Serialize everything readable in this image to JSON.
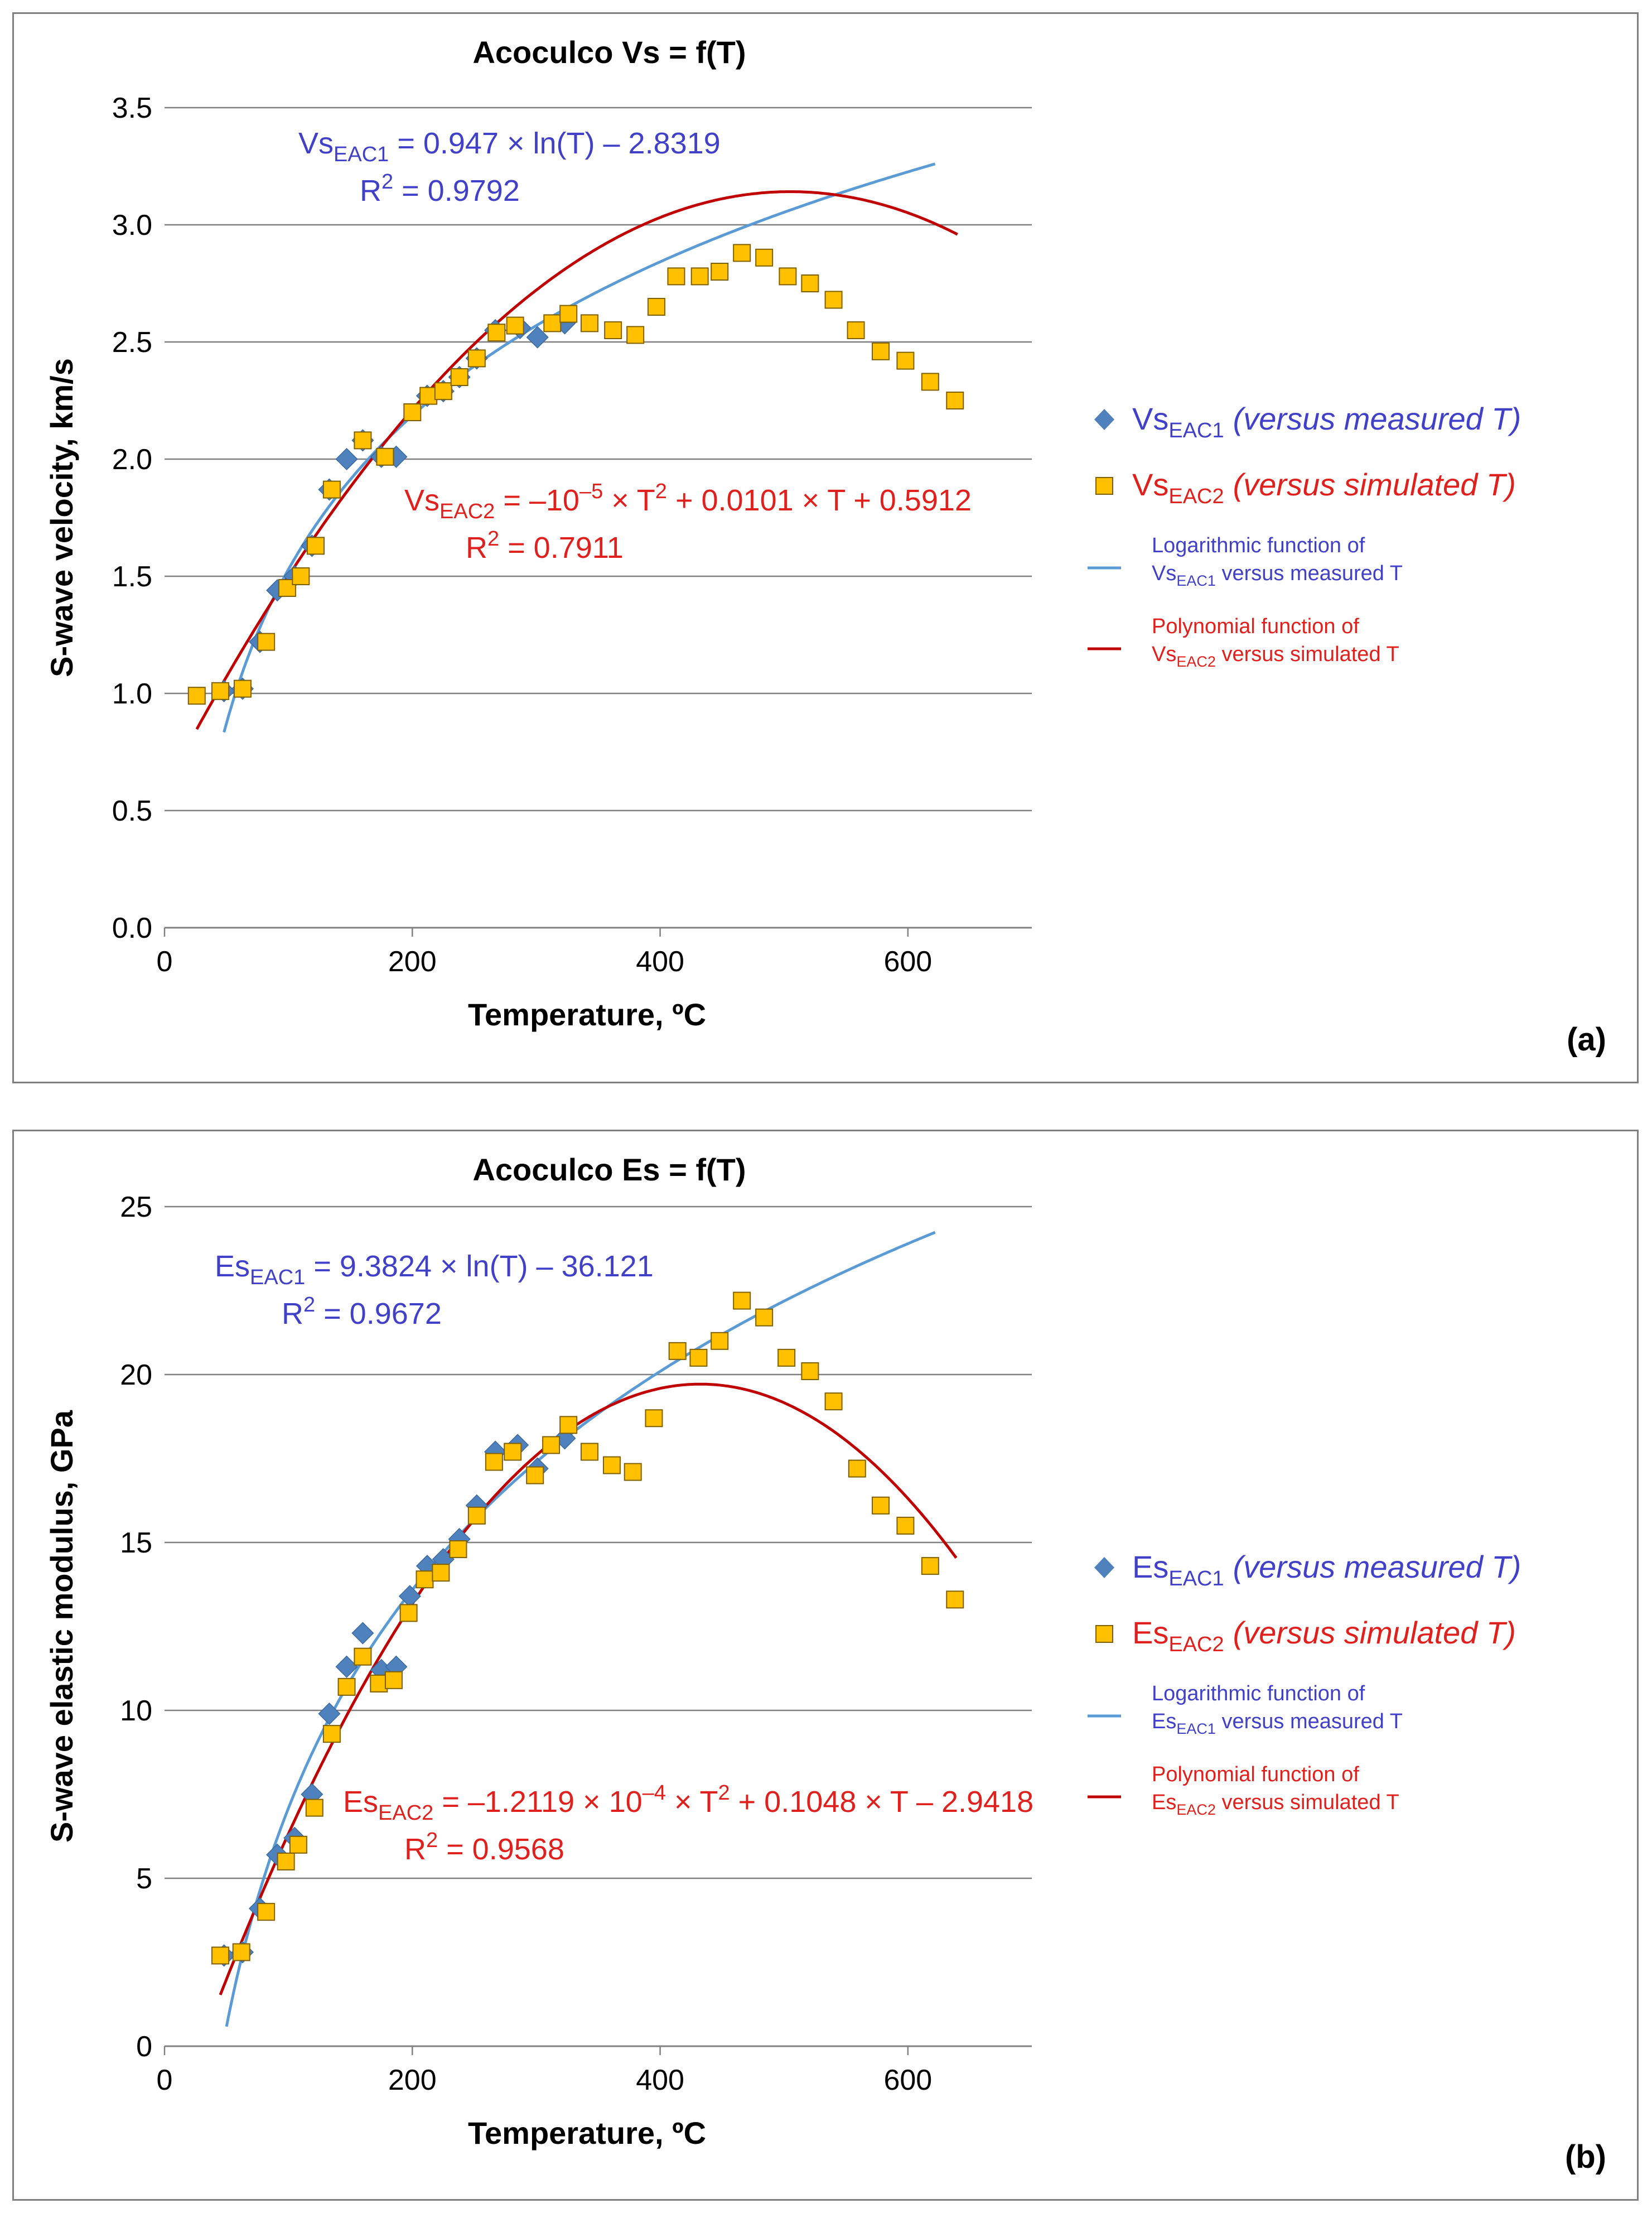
{
  "colors": {
    "blue_series": "#4f81bd",
    "blue_text": "#4040c8",
    "blue_line": "#5b9bd5",
    "orange_fill": "#ffc000",
    "orange_stroke": "#7f6000",
    "red": "#e0201c",
    "red_line": "#c00000",
    "grid": "#808080",
    "frame": "#7f7f7f"
  },
  "chart_data": [
    {
      "type": "scatter",
      "panel_label": "(a)",
      "title": "Acoculco Vs = f(T)",
      "xlabel": "Temperature, ºC",
      "ylabel": "S-wave velocity, km/s",
      "xlim": [
        0,
        700
      ],
      "ylim": [
        0,
        3.5
      ],
      "xticks": [
        "0",
        "200",
        "400",
        "600"
      ],
      "yticks": [
        "0.0",
        "0.5",
        "1.0",
        "1.5",
        "2.0",
        "2.5",
        "3.0",
        "3.5"
      ],
      "series": [
        {
          "name": "VsEAC1 (versus measured T)",
          "name_parts": {
            "base": "Vs",
            "sub": "EAC1",
            "desc": "(versus measured T)"
          },
          "marker": "diamond",
          "points": [
            [
              48,
              1.01
            ],
            [
              63,
              1.02
            ],
            [
              77,
              1.22
            ],
            [
              91,
              1.44
            ],
            [
              105,
              1.5
            ],
            [
              119,
              1.63
            ],
            [
              133,
              1.87
            ],
            [
              147,
              2.0
            ],
            [
              160,
              2.08
            ],
            [
              175,
              2.01
            ],
            [
              187,
              2.01
            ],
            [
              212,
              2.27
            ],
            [
              225,
              2.29
            ],
            [
              238,
              2.35
            ],
            [
              252,
              2.43
            ],
            [
              267,
              2.55
            ],
            [
              287,
              2.56
            ],
            [
              301,
              2.52
            ],
            [
              323,
              2.58
            ]
          ]
        },
        {
          "name": "VsEAC2 (versus simulated T)",
          "name_parts": {
            "base": "Vs",
            "sub": "EAC2",
            "desc": "(versus simulated T)"
          },
          "marker": "square",
          "points": [
            [
              26,
              0.99
            ],
            [
              45,
              1.01
            ],
            [
              63,
              1.02
            ],
            [
              82,
              1.22
            ],
            [
              99,
              1.45
            ],
            [
              110,
              1.5
            ],
            [
              122,
              1.63
            ],
            [
              135,
              1.87
            ],
            [
              160,
              2.08
            ],
            [
              178,
              2.01
            ],
            [
              200,
              2.2
            ],
            [
              213,
              2.27
            ],
            [
              225,
              2.29
            ],
            [
              238,
              2.35
            ],
            [
              252,
              2.43
            ],
            [
              268,
              2.54
            ],
            [
              283,
              2.57
            ],
            [
              313,
              2.58
            ],
            [
              326,
              2.62
            ],
            [
              343,
              2.58
            ],
            [
              362,
              2.55
            ],
            [
              380,
              2.53
            ],
            [
              397,
              2.65
            ],
            [
              413,
              2.78
            ],
            [
              432,
              2.78
            ],
            [
              448,
              2.8
            ],
            [
              466,
              2.88
            ],
            [
              484,
              2.86
            ],
            [
              503,
              2.78
            ],
            [
              521,
              2.75
            ],
            [
              540,
              2.68
            ],
            [
              558,
              2.55
            ],
            [
              578,
              2.46
            ],
            [
              598,
              2.42
            ],
            [
              618,
              2.33
            ],
            [
              638,
              2.25
            ]
          ]
        }
      ],
      "fits": [
        {
          "name": "Logarithmic function of VsEAC1 versus measured T",
          "legend_line1": "Logarithmic function of",
          "legend_base": "Vs",
          "legend_sub": "EAC1",
          "legend_rest": " versus measured T",
          "kind": "log",
          "a": 0.947,
          "b": -2.8319,
          "range": [
            48,
            622
          ],
          "equation": {
            "lhs": "Vs",
            "sub": "EAC1",
            "rhs": " = 0.947 × ln(T) – 2.8319",
            "r2_label": "R",
            "r2_sup": "2",
            "r2_value": " = 0.9792"
          }
        },
        {
          "name": "Polynomial function of VsEAC2 versus simulated T",
          "legend_line1": "Polynomial function of",
          "legend_base": "Vs",
          "legend_sub": "EAC2",
          "legend_rest": " versus simulated T",
          "kind": "poly2",
          "a": -1e-05,
          "b": 0.0101,
          "c": 0.5912,
          "range": [
            26,
            640
          ],
          "equation": {
            "lhs": "Vs",
            "sub": "EAC2",
            "pre": " = –10",
            "pre_sup": "–5",
            "mid": " × T",
            "mid_sup": "2",
            "rhs": " + 0.0101 × T + 0.5912",
            "r2_label": "R",
            "r2_sup": "2",
            "r2_value": " = 0.7911"
          }
        }
      ]
    },
    {
      "type": "scatter",
      "panel_label": "(b)",
      "title": "Acoculco Es = f(T)",
      "xlabel": "Temperature, ºC",
      "ylabel": "S-wave elastic modulus, GPa",
      "xlim": [
        0,
        700
      ],
      "ylim": [
        0,
        25
      ],
      "xticks": [
        "0",
        "200",
        "400",
        "600"
      ],
      "yticks": [
        "0",
        "5",
        "10",
        "15",
        "20",
        "25"
      ],
      "series": [
        {
          "name": "EsEAC1 (versus measured T)",
          "name_parts": {
            "base": "Es",
            "sub": "EAC1",
            "desc": "(versus measured T)"
          },
          "marker": "diamond",
          "points": [
            [
              48,
              2.7
            ],
            [
              63,
              2.8
            ],
            [
              77,
              4.1
            ],
            [
              91,
              5.7
            ],
            [
              105,
              6.2
            ],
            [
              119,
              7.5
            ],
            [
              133,
              9.9
            ],
            [
              147,
              11.3
            ],
            [
              160,
              12.3
            ],
            [
              175,
              11.2
            ],
            [
              187,
              11.3
            ],
            [
              198,
              13.4
            ],
            [
              212,
              14.3
            ],
            [
              225,
              14.5
            ],
            [
              238,
              15.1
            ],
            [
              252,
              16.1
            ],
            [
              267,
              17.7
            ],
            [
              285,
              17.9
            ],
            [
              301,
              17.2
            ],
            [
              323,
              18.1
            ]
          ]
        },
        {
          "name": "EsEAC2 (versus simulated T)",
          "name_parts": {
            "base": "Es",
            "sub": "EAC2",
            "desc": "(versus simulated T)"
          },
          "marker": "square",
          "points": [
            [
              45,
              2.7
            ],
            [
              62,
              2.8
            ],
            [
              82,
              4.0
            ],
            [
              98,
              5.5
            ],
            [
              108,
              6.0
            ],
            [
              121,
              7.1
            ],
            [
              135,
              9.3
            ],
            [
              147,
              10.7
            ],
            [
              160,
              11.6
            ],
            [
              173,
              10.8
            ],
            [
              185,
              10.9
            ],
            [
              197,
              12.9
            ],
            [
              210,
              13.9
            ],
            [
              223,
              14.1
            ],
            [
              237,
              14.8
            ],
            [
              252,
              15.8
            ],
            [
              266,
              17.4
            ],
            [
              281,
              17.7
            ],
            [
              299,
              17.0
            ],
            [
              312,
              17.9
            ],
            [
              326,
              18.5
            ],
            [
              343,
              17.7
            ],
            [
              361,
              17.3
            ],
            [
              378,
              17.1
            ],
            [
              395,
              18.7
            ],
            [
              414,
              20.7
            ],
            [
              431,
              20.5
            ],
            [
              448,
              21.0
            ],
            [
              466,
              22.2
            ],
            [
              484,
              21.7
            ],
            [
              502,
              20.5
            ],
            [
              521,
              20.1
            ],
            [
              540,
              19.2
            ],
            [
              559,
              17.2
            ],
            [
              578,
              16.1
            ],
            [
              598,
              15.5
            ],
            [
              618,
              14.3
            ],
            [
              638,
              13.3
            ]
          ]
        }
      ],
      "fits": [
        {
          "name": "Logarithmic function of EsEAC1 versus measured T",
          "legend_line1": "Logarithmic function of",
          "legend_base": "Es",
          "legend_sub": "EAC1",
          "legend_rest": " versus measured T",
          "kind": "log",
          "a": 9.3824,
          "b": -36.121,
          "range": [
            50,
            622
          ],
          "equation": {
            "lhs": "Es",
            "sub": "EAC1",
            "rhs": " = 9.3824 × ln(T) – 36.121",
            "r2_label": "R",
            "r2_sup": "2",
            "r2_value": " = 0.9672"
          }
        },
        {
          "name": "Polynomial function of EsEAC2 versus simulated T",
          "legend_line1": "Polynomial function of",
          "legend_base": "Es",
          "legend_sub": "EAC2",
          "legend_rest": " versus simulated T",
          "kind": "poly2",
          "a": -0.00012119,
          "b": 0.1048,
          "c": -2.9418,
          "range": [
            45,
            640
          ],
          "equation": {
            "lhs": "Es",
            "sub": "EAC2",
            "pre": " = –1.2119 × 10",
            "pre_sup": "–4",
            "mid": " × T",
            "mid_sup": "2",
            "rhs": " + 0.1048 × T – 2.9418",
            "r2_label": "R",
            "r2_sup": "2",
            "r2_value": " = 0.9568"
          }
        }
      ]
    }
  ]
}
